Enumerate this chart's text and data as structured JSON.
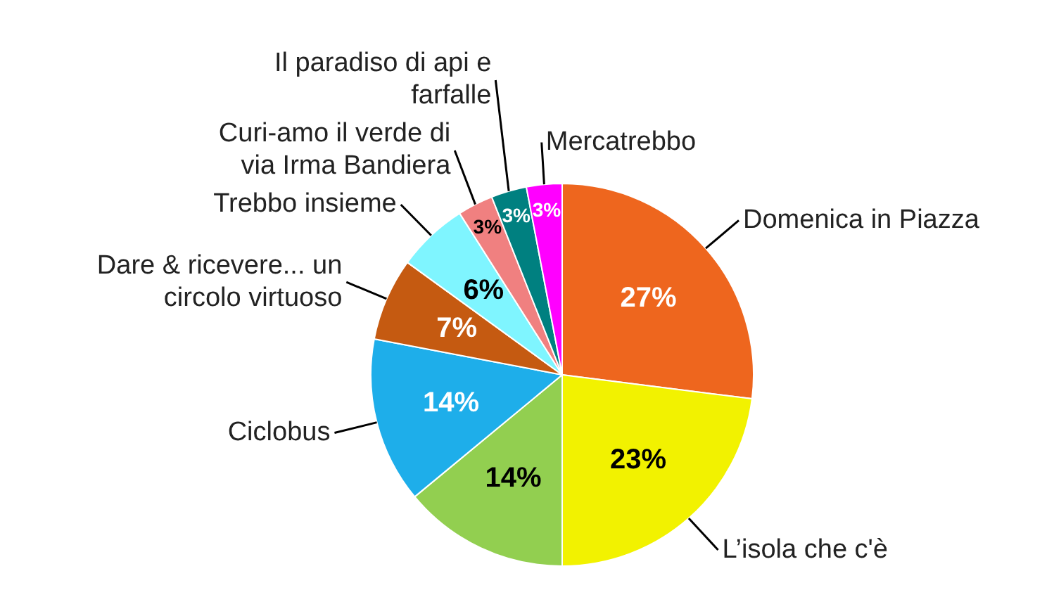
{
  "chart_data": {
    "type": "pie",
    "categories": [
      "Domenica in Piazza",
      "L’isola che c'è",
      null,
      "Ciclobus",
      "Dare & ricevere... un circolo virtuoso",
      "Trebbo insieme",
      "Curi-amo il verde di via Irma Bandiera",
      "Il paradiso di api e farfalle",
      "Mercatrebbo"
    ],
    "values": [
      27,
      23,
      14,
      14,
      7,
      6,
      3,
      3,
      3
    ],
    "value_labels": [
      "27%",
      "23%",
      "14%",
      "14%",
      "7%",
      "6%",
      "3%",
      "3%",
      "3%"
    ],
    "colors": [
      "#ee661e",
      "#f2f200",
      "#92cf50",
      "#1eaeea",
      "#c55a11",
      "#7ff5ff",
      "#f08080",
      "#008080",
      "#ff00ff"
    ],
    "legend": false
  }
}
